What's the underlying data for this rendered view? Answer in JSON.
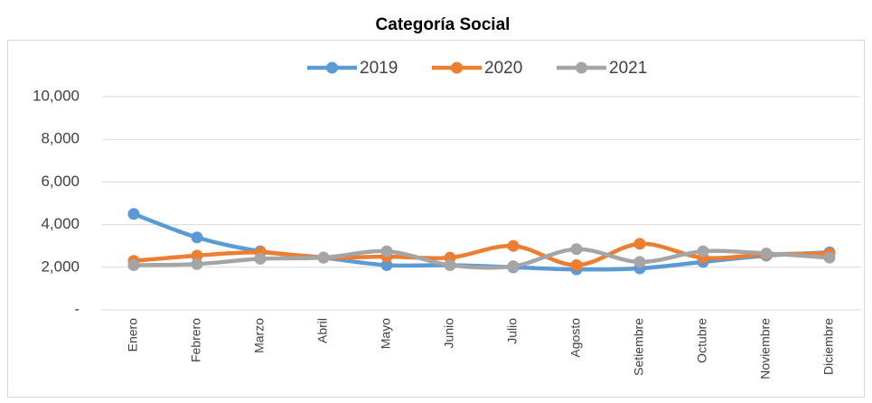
{
  "chart_data": {
    "type": "line",
    "title": "Categoría Social",
    "categories": [
      "Enero",
      "Febrero",
      "Marzo",
      "Abril",
      "Mayo",
      "Junio",
      "Julio",
      "Agosto",
      "Setiembre",
      "Octubre",
      "Noviembre",
      "Diciembre"
    ],
    "series": [
      {
        "name": "2019",
        "color": "#5b9bd5",
        "values": [
          4500,
          3400,
          2750,
          2450,
          2100,
          2100,
          2000,
          1900,
          1950,
          2250,
          2550,
          2700
        ]
      },
      {
        "name": "2020",
        "color": "#ed7d31",
        "values": [
          2300,
          2550,
          2700,
          2450,
          2500,
          2450,
          3000,
          2100,
          3100,
          2450,
          2600,
          2650
        ]
      },
      {
        "name": "2021",
        "color": "#a5a5a5",
        "values": [
          2100,
          2150,
          2400,
          2450,
          2750,
          2100,
          2050,
          2850,
          2250,
          2750,
          2650,
          2450
        ]
      }
    ],
    "ylim": [
      0,
      10000
    ],
    "yticks": [
      {
        "value": 0,
        "label": "-"
      },
      {
        "value": 2000,
        "label": "2,000"
      },
      {
        "value": 4000,
        "label": "4,000"
      },
      {
        "value": 6000,
        "label": "6,000"
      },
      {
        "value": 8000,
        "label": "8,000"
      },
      {
        "value": 10000,
        "label": "10,000"
      }
    ],
    "grid": true,
    "legend": "top",
    "smooth": true
  }
}
